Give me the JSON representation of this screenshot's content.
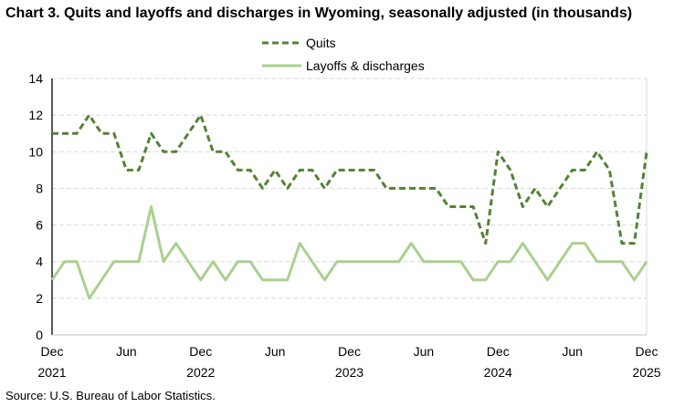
{
  "chart_data": {
    "type": "line",
    "title": "Chart 3. Quits and layoffs and discharges in Wyoming, seasonally adjusted (in thousands)",
    "source": "Source: U.S. Bureau of Labor Statistics.",
    "x_start": "Dec 2021",
    "x_end": "Dec 2025",
    "x_ticks": [
      {
        "month_index": 0,
        "label": "Dec",
        "year": "2021"
      },
      {
        "month_index": 6,
        "label": "Jun",
        "year": ""
      },
      {
        "month_index": 12,
        "label": "Dec",
        "year": "2022"
      },
      {
        "month_index": 18,
        "label": "Jun",
        "year": ""
      },
      {
        "month_index": 24,
        "label": "Dec",
        "year": "2023"
      },
      {
        "month_index": 30,
        "label": "Jun",
        "year": ""
      },
      {
        "month_index": 36,
        "label": "Dec",
        "year": "2024"
      },
      {
        "month_index": 42,
        "label": "Jun",
        "year": ""
      },
      {
        "month_index": 48,
        "label": "Dec",
        "year": "2025"
      }
    ],
    "ylim": [
      0,
      14
    ],
    "y_ticks": [
      0,
      2,
      4,
      6,
      8,
      10,
      12,
      14
    ],
    "grid": "horizontal dashed",
    "legend": "top-center",
    "series": [
      {
        "name": "Quits",
        "color": "#548235",
        "style": "dashed",
        "values": [
          11,
          11,
          11,
          12,
          11,
          11,
          9,
          9,
          11,
          10,
          10,
          11,
          12,
          10,
          10,
          9,
          9,
          8,
          9,
          8,
          9,
          9,
          8,
          9,
          9,
          9,
          9,
          8,
          8,
          8,
          8,
          8,
          7,
          7,
          7,
          5,
          10,
          9,
          7,
          8,
          7,
          8,
          9,
          9,
          10,
          9,
          5,
          5,
          10
        ]
      },
      {
        "name": "Layoffs & discharges",
        "color": "#A9D18E",
        "style": "solid",
        "values": [
          3,
          4,
          4,
          2,
          3,
          4,
          4,
          4,
          7,
          4,
          5,
          4,
          3,
          4,
          3,
          4,
          4,
          3,
          3,
          3,
          5,
          4,
          3,
          4,
          4,
          4,
          4,
          4,
          4,
          5,
          4,
          4,
          4,
          4,
          3,
          3,
          4,
          4,
          5,
          4,
          3,
          4,
          5,
          5,
          4,
          4,
          4,
          3,
          4
        ]
      }
    ]
  }
}
